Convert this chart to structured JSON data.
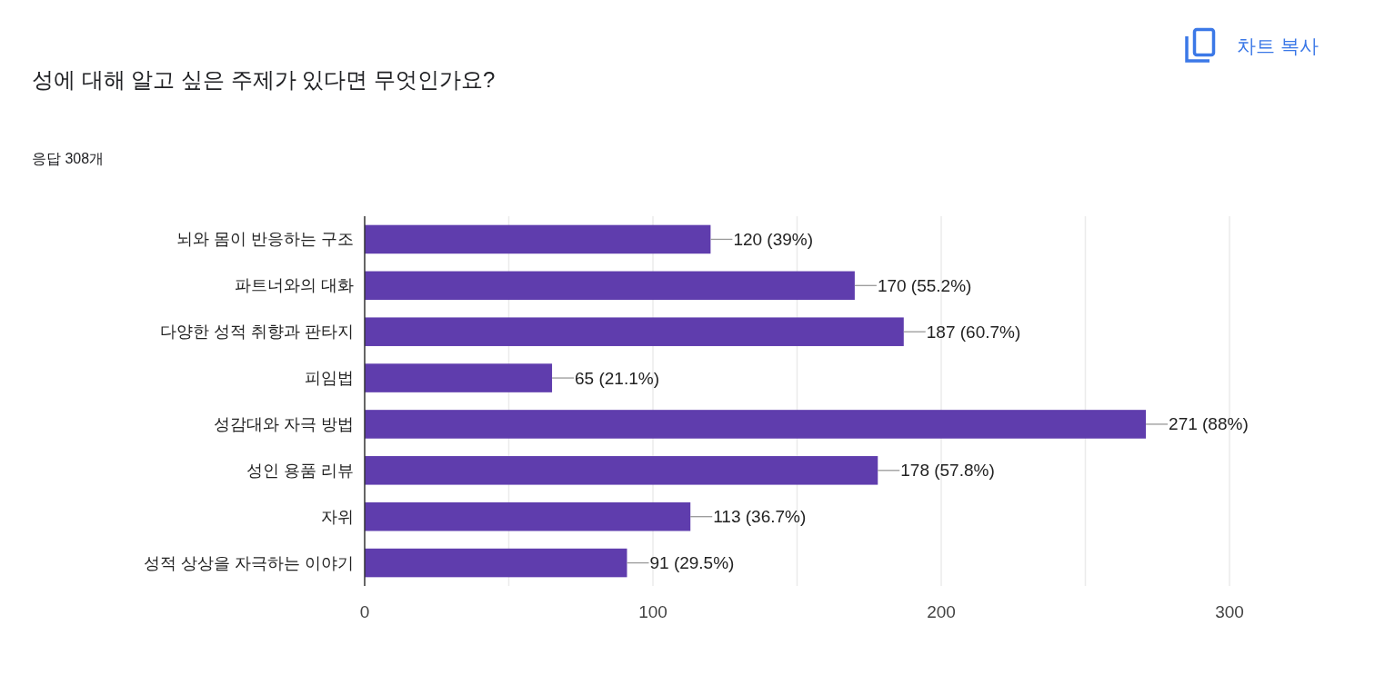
{
  "chart_data": {
    "type": "bar",
    "orientation": "horizontal",
    "title": "성에 대해 알고 싶은 주제가 있다면 무엇인가요?",
    "subtitle": "응답 308개",
    "annotations": [
      "차트 복사"
    ],
    "categories": [
      "뇌와 몸이 반응하는 구조",
      "파트너와의 대화",
      "다양한 성적 취향과 판타지",
      "피임법",
      "성감대와 자극 방법",
      "성인 용품 리뷰",
      "자위",
      "성적 상상을 자극하는 이야기"
    ],
    "values": [
      120,
      170,
      187,
      65,
      271,
      178,
      113,
      91
    ],
    "value_labels": [
      "120 (39%)",
      "170 (55.2%)",
      "187 (60.7%)",
      "65 (21.1%)",
      "271 (88%)",
      "178 (57.8%)",
      "113 (36.7%)",
      "91 (29.5%)"
    ],
    "color": "#5f3dad",
    "xlim": [
      0,
      300
    ],
    "xticks": [
      0,
      {
        "value": 50,
        "label": null
      },
      100,
      {
        "value": 150,
        "label": null
      },
      200,
      {
        "value": 250,
        "label": null
      },
      300
    ],
    "grid": "x"
  }
}
